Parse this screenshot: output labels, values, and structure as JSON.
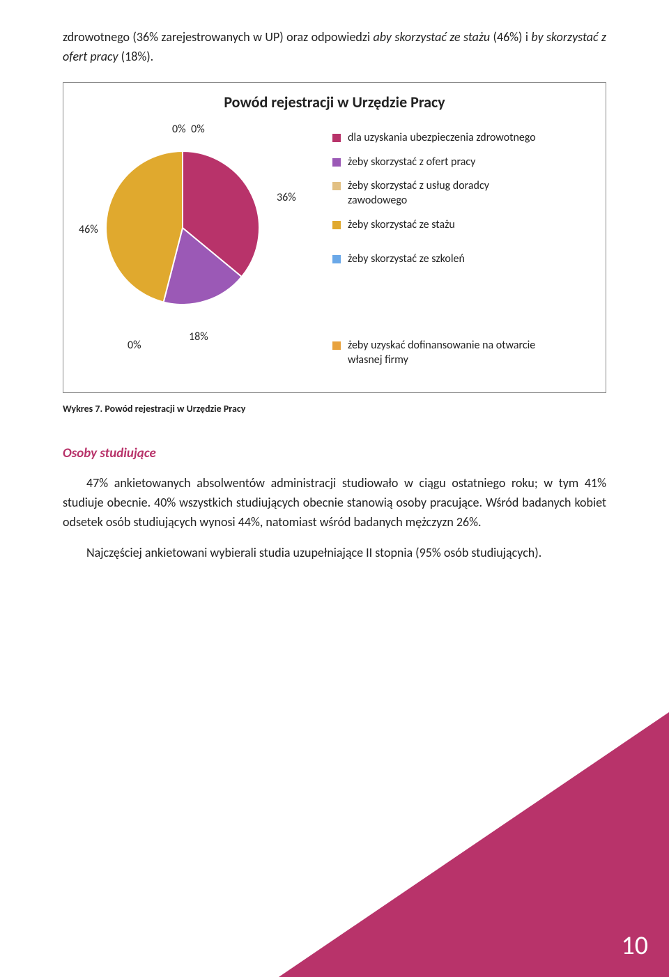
{
  "colors": {
    "accent": "#b8336a",
    "triangle": "#b8336a",
    "text": "#222222"
  },
  "intro": {
    "pre": "zdrowotnego",
    "p1": " (36% zarejestrowanych w UP) oraz odpowiedzi ",
    "it1": "aby skorzystać ze stażu",
    "p2": " (46%) i ",
    "it2": "by skorzystać z ofert pracy",
    "p3": " (18%)."
  },
  "chart": {
    "type": "pie",
    "title": "Powód rejestracji w Urzędzie Pracy",
    "top_zero_a": "0%",
    "top_zero_b": "0%",
    "label_46": "46%",
    "label_36": "36%",
    "label_18": "18%",
    "label_0_bl": "0%",
    "slices": [
      {
        "label": "dla uzyskania ubezpieczenia zdrowotnego",
        "value": 36,
        "color": "#b8336a"
      },
      {
        "label": "żeby skorzystać z ofert pracy",
        "value": 18,
        "color": "#9b59b6"
      },
      {
        "label": "żeby skorzystać z usług doradcy zawodowego",
        "value": 0,
        "color": "#e2c083"
      },
      {
        "label": "żeby skorzystać ze stażu",
        "value": 46,
        "color": "#e0a92e"
      },
      {
        "label": "żeby skorzystać ze szkoleń",
        "value": 0,
        "color": "#6aa8e8"
      },
      {
        "label": "żeby uzyskać dofinansowanie na otwarcie własnej firmy",
        "value": 0,
        "color": "#e8a23d"
      }
    ],
    "legend_upper": [
      {
        "color": "#b8336a",
        "text": "dla uzyskania ubezpieczenia zdrowotnego"
      },
      {
        "color": "#9b59b6",
        "text": "żeby skorzystać z ofert pracy"
      },
      {
        "color": "#e2c083",
        "text": "żeby skorzystać z usług doradcy zawodowego"
      },
      {
        "color": "#e0a92e",
        "text": "żeby skorzystać ze stażu"
      }
    ],
    "legend_break": {
      "color": "#6aa8e8",
      "text": "żeby skorzystać ze szkoleń"
    },
    "legend_lower": [
      {
        "color": "#e8a23d",
        "text": "żeby uzyskać dofinansowanie na otwarcie własnej firmy"
      }
    ],
    "border_color": "#888888",
    "title_fontsize": 22,
    "label_fontsize": 16,
    "background_color": "#ffffff"
  },
  "caption": "Wykres 7. Powód rejestracji w Urzędzie Pracy",
  "section_header": "Osoby studiujące",
  "section_header_color": "#b8336a",
  "para1": "47% ankietowanych absolwentów administracji studiowało w ciągu ostatniego roku; w tym 41% studiuje obecnie. 40% wszystkich studiujących obecnie stanowią osoby pracujące. Wśród badanych kobiet odsetek osób studiujących wynosi 44%, natomiast wśród badanych mężczyzn 26%.",
  "para2": "Najczęściej ankietowani wybierali studia uzupełniające II stopnia (95% osób studiujących).",
  "page_number": "10"
}
